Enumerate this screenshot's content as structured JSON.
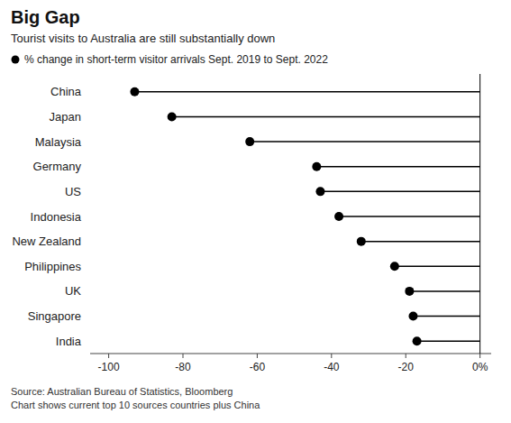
{
  "chart_data": {
    "type": "lollipop",
    "orientation": "horizontal",
    "title": "Big Gap",
    "subtitle": "Tourist visits to Australia are still substantially down",
    "annotations": [
      "Source: Australian Bureau of Statistics, Bloomberg",
      "Chart shows current top 10 sources countries plus China"
    ],
    "categories": [
      "China",
      "Japan",
      "Malaysia",
      "Germany",
      "US",
      "Indonesia",
      "New Zealand",
      "Philippines",
      "UK",
      "Singapore",
      "India"
    ],
    "series": [
      {
        "name": "% change in short-term visitor arrivals Sept. 2019 to Sept. 2022",
        "color": "#000000",
        "values": [
          -93,
          -83,
          -62,
          -44,
          -43,
          -38,
          -32,
          -23,
          -19,
          -18,
          -17
        ]
      }
    ],
    "xlim": [
      -105,
      3
    ],
    "xticks": [
      -100,
      -80,
      -60,
      -40,
      -20,
      {
        "value": 0,
        "label": "0%"
      }
    ]
  }
}
